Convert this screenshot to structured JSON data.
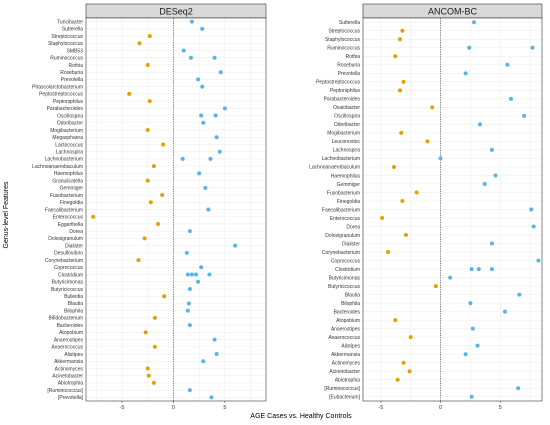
{
  "figure": {
    "y_axis_title": "Genus-level Features",
    "x_axis_title": "AGE Cases vs. Healthy Controls"
  },
  "colors": {
    "increased": "#56b4e9",
    "decreased": "#e69f00",
    "panel_strip": "#d9d9d9",
    "grid": "#ebebeb",
    "zero_line": "#333333"
  },
  "chart_data": [
    {
      "type": "scatter",
      "title": "DESeq2",
      "xlim": [
        -8.5,
        9
      ],
      "xticks": [
        -5,
        0,
        5
      ],
      "grid": true,
      "points": [
        {
          "label": "Turicibacter",
          "value": 1.8
        },
        {
          "label": "Sutterella",
          "value": 2.8
        },
        {
          "label": "Streptococcus",
          "value": -2.3
        },
        {
          "label": "Staphylococcus",
          "value": -3.3
        },
        {
          "label": "SMB53",
          "value": 1.0
        },
        {
          "label": "Ruminococcus",
          "value": 1.7
        },
        {
          "label": "Ruminococcus",
          "value": 4.0
        },
        {
          "label": "Rothia",
          "value": -2.5
        },
        {
          "label": "Roseburia",
          "value": 4.6
        },
        {
          "label": "Prevotella",
          "value": 2.4
        },
        {
          "label": "Phascolarctobacterium",
          "value": 2.8
        },
        {
          "label": "Peptostreptococcus",
          "value": -4.3
        },
        {
          "label": "Peptoniphilus",
          "value": -2.3
        },
        {
          "label": "Parabacteroides",
          "value": 5.0
        },
        {
          "label": "Oscillospira",
          "value": 2.7
        },
        {
          "label": "Oscillospira",
          "value": 4.1
        },
        {
          "label": "Odoribacter",
          "value": 2.9
        },
        {
          "label": "Mogibacterium",
          "value": -2.5
        },
        {
          "label": "Megasphaera",
          "value": 4.2
        },
        {
          "label": "Lactococcus",
          "value": -1.0
        },
        {
          "label": "Lachnospira",
          "value": 4.5
        },
        {
          "label": "Lachnobacterium",
          "value": 0.9
        },
        {
          "label": "Lachnobacterium",
          "value": 3.6
        },
        {
          "label": "Lachnoanaerobaculum",
          "value": -1.9
        },
        {
          "label": "Haemophilus",
          "value": 2.5
        },
        {
          "label": "Granulicatella",
          "value": -2.5
        },
        {
          "label": "Gemmiger",
          "value": 3.1
        },
        {
          "label": "Fusobacterium",
          "value": -1.1
        },
        {
          "label": "Finegoldia",
          "value": -2.2
        },
        {
          "label": "Faecalibacterium",
          "value": 3.4
        },
        {
          "label": "Enterococcus",
          "value": -7.8
        },
        {
          "label": "Eggerthella",
          "value": -1.5
        },
        {
          "label": "Dorea",
          "value": 1.6
        },
        {
          "label": "Dolosigranulum",
          "value": -2.8
        },
        {
          "label": "Dialister",
          "value": 6.0
        },
        {
          "label": "Desulfovibrio",
          "value": 1.3
        },
        {
          "label": "Corynebacterium",
          "value": -3.4
        },
        {
          "label": "Coprococcus",
          "value": 2.7
        },
        {
          "label": "Clostridium",
          "value": 1.4
        },
        {
          "label": "Clostridium",
          "value": 1.8
        },
        {
          "label": "Clostridium",
          "value": 2.2
        },
        {
          "label": "Clostridium",
          "value": 3.5
        },
        {
          "label": "Butyricimonas",
          "value": 2.4
        },
        {
          "label": "Butyricicoccus",
          "value": 1.6
        },
        {
          "label": "Bulleidia",
          "value": -0.9
        },
        {
          "label": "Blautia",
          "value": 1.5
        },
        {
          "label": "Bilophila",
          "value": 1.4
        },
        {
          "label": "Bifidobacterium",
          "value": -1.8
        },
        {
          "label": "Bacteroides",
          "value": 1.6
        },
        {
          "label": "Atopobium",
          "value": -2.7
        },
        {
          "label": "Anaerostipes",
          "value": 4.0
        },
        {
          "label": "Anaerococcus",
          "value": -1.8
        },
        {
          "label": "Alistipes",
          "value": 4.2
        },
        {
          "label": "Akkermansia",
          "value": 2.9
        },
        {
          "label": "Actinomyces",
          "value": -2.5
        },
        {
          "label": "Acinetobacter",
          "value": -2.4
        },
        {
          "label": "Abiotrophia",
          "value": -1.9
        },
        {
          "label": "[Ruminococcus]",
          "value": 1.6
        },
        {
          "label": "[Prevotella]",
          "value": 3.7
        }
      ]
    },
    {
      "type": "scatter",
      "title": "ANCOM-BC",
      "xlim": [
        -6.5,
        8.5
      ],
      "xticks": [
        -5,
        0,
        5
      ],
      "grid": true,
      "points": [
        {
          "label": "Sutterella",
          "value": 2.8
        },
        {
          "label": "Streptococcus",
          "value": -3.2
        },
        {
          "label": "Staphylococcus",
          "value": -3.4
        },
        {
          "label": "Ruminococcus",
          "value": 2.4
        },
        {
          "label": "Ruminococcus",
          "value": 7.7
        },
        {
          "label": "Rothia",
          "value": -3.8
        },
        {
          "label": "Roseburia",
          "value": 5.6
        },
        {
          "label": "Prevotella",
          "value": 2.1
        },
        {
          "label": "Peptostreptococcus",
          "value": -3.1
        },
        {
          "label": "Peptoniphilus",
          "value": -3.4
        },
        {
          "label": "Parabacteroides",
          "value": 5.9
        },
        {
          "label": "Oxalobacter",
          "value": -0.7
        },
        {
          "label": "Oscillospira",
          "value": 7.0
        },
        {
          "label": "Odoribacter",
          "value": 3.3
        },
        {
          "label": "Mogibacterium",
          "value": -3.3
        },
        {
          "label": "Leuconostoc",
          "value": -1.1
        },
        {
          "label": "Lachnospira",
          "value": 4.3
        },
        {
          "label": "Lachnobacterium",
          "value": 0.0
        },
        {
          "label": "Lachnoanaerobaculum",
          "value": -3.9
        },
        {
          "label": "Haemophilus",
          "value": 4.6
        },
        {
          "label": "Gemmiger",
          "value": 3.7
        },
        {
          "label": "Fusobacterium",
          "value": -2.0
        },
        {
          "label": "Finegoldia",
          "value": -3.2
        },
        {
          "label": "Faecalibacterium",
          "value": 7.6
        },
        {
          "label": "Enterococcus",
          "value": -4.9
        },
        {
          "label": "Dorea",
          "value": 7.8
        },
        {
          "label": "Dolosigranulum",
          "value": -2.9
        },
        {
          "label": "Dialister",
          "value": 4.3
        },
        {
          "label": "Corynebacterium",
          "value": -4.4
        },
        {
          "label": "Coprococcus",
          "value": 8.2
        },
        {
          "label": "Clostridium",
          "value": 2.6
        },
        {
          "label": "Clostridium",
          "value": 3.2
        },
        {
          "label": "Clostridium",
          "value": 4.3
        },
        {
          "label": "Butyricimonas",
          "value": 0.8
        },
        {
          "label": "Butyricicoccus",
          "value": -0.4
        },
        {
          "label": "Blautia",
          "value": 6.6
        },
        {
          "label": "Bilophila",
          "value": 2.5
        },
        {
          "label": "Bacteroides",
          "value": 5.4
        },
        {
          "label": "Atopobium",
          "value": -3.8
        },
        {
          "label": "Anaerostipes",
          "value": 2.7
        },
        {
          "label": "Anaerococcus",
          "value": -2.5
        },
        {
          "label": "Alistipes",
          "value": 3.1
        },
        {
          "label": "Akkermansia",
          "value": 2.1
        },
        {
          "label": "Actinomyces",
          "value": -3.1
        },
        {
          "label": "Acinetobacter",
          "value": -2.6
        },
        {
          "label": "Abiotrophia",
          "value": -3.6
        },
        {
          "label": "[Ruminococcus]",
          "value": 6.5
        },
        {
          "label": "[Eubacterium]",
          "value": 2.6
        }
      ]
    }
  ]
}
